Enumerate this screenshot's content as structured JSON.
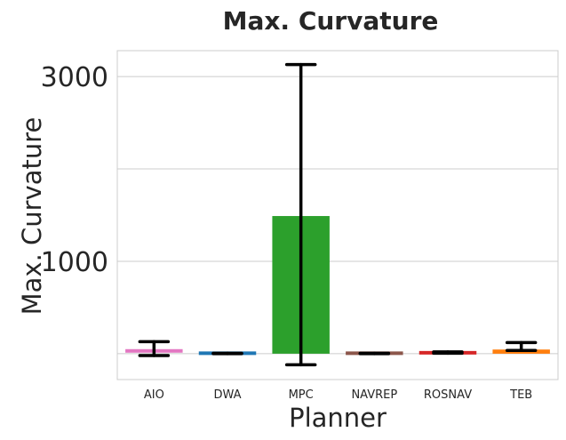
{
  "chart_data": {
    "type": "bar",
    "title": "Max. Curvature",
    "xlabel": "Planner",
    "ylabel": "Max. Curvature",
    "categories": [
      "AIO",
      "DWA",
      "MPC",
      "NAVREP",
      "ROSNAV",
      "TEB"
    ],
    "values": [
      30,
      5,
      1490,
      5,
      10,
      45
    ],
    "error_low": [
      -20,
      0,
      -120,
      0,
      5,
      35
    ],
    "error_high": [
      130,
      5,
      3130,
      5,
      20,
      120
    ],
    "colors": [
      "#e377c2",
      "#1f77b4",
      "#2ca02c",
      "#8c564b",
      "#d62728",
      "#ff7f0e"
    ],
    "ylim": [
      -280,
      3280
    ],
    "yticks": [
      1000,
      3000
    ],
    "ygrid": [
      0,
      1000,
      2000,
      3000
    ],
    "grid": true
  }
}
